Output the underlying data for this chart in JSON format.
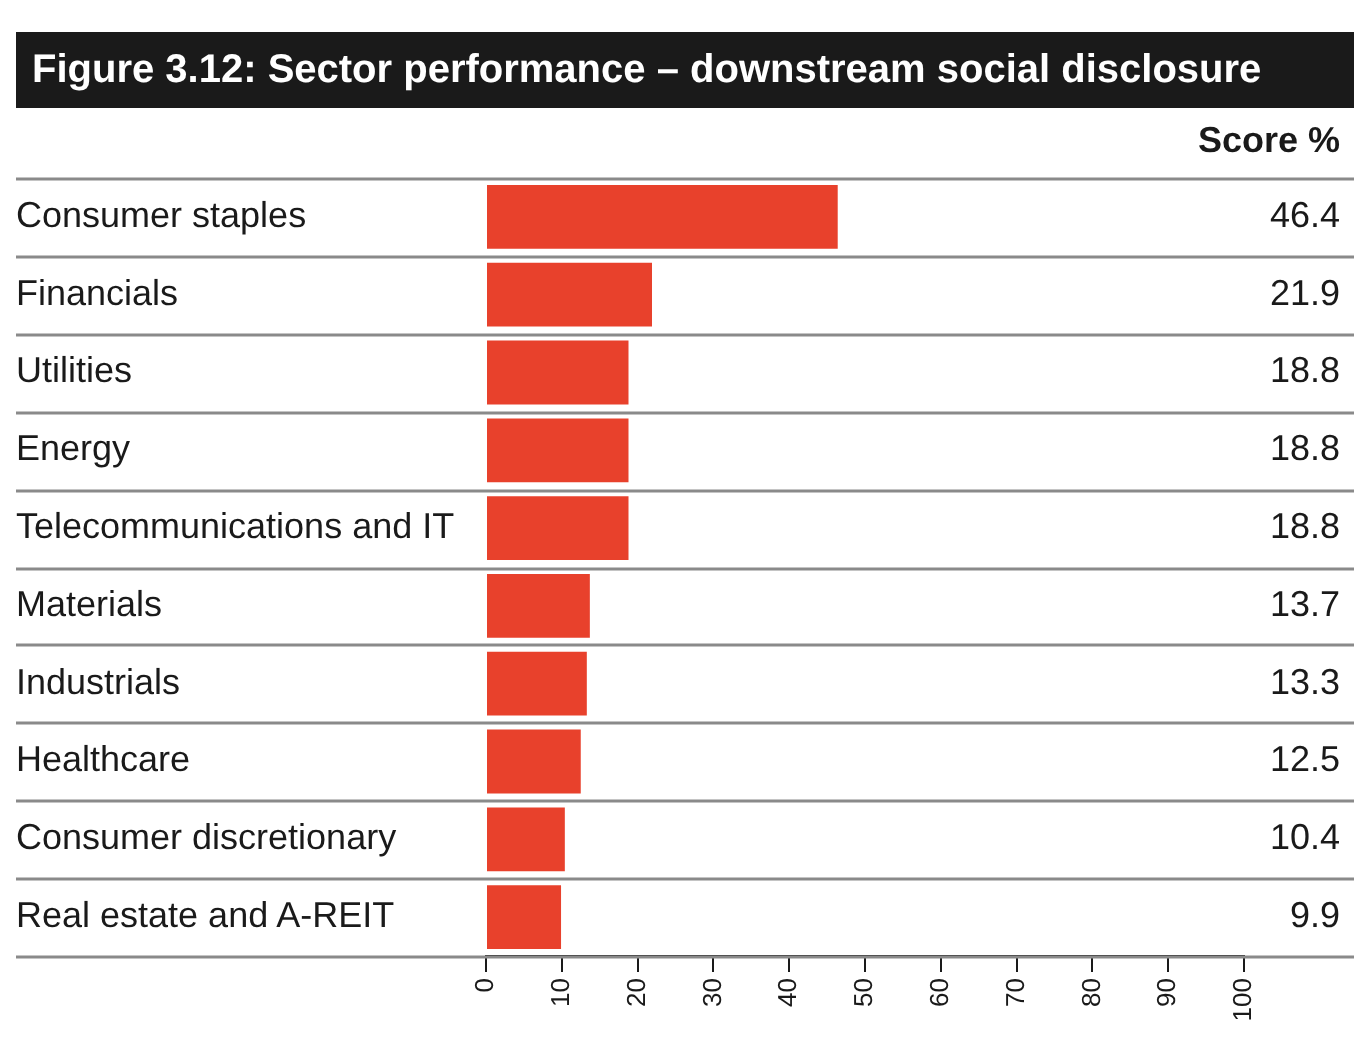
{
  "chart_data": {
    "type": "bar",
    "orientation": "horizontal",
    "title": "Figure 3.12: Sector performance – downstream social disclosure",
    "categories": [
      "Consumer staples",
      "Financials",
      "Utilities",
      "Energy",
      "Telecommunications and IT",
      "Materials",
      "Industrials",
      "Healthcare",
      "Consumer discretionary",
      "Real estate and A-REIT"
    ],
    "values": [
      46.4,
      21.9,
      18.8,
      18.8,
      18.8,
      13.7,
      13.3,
      12.5,
      10.4,
      9.9
    ],
    "color": "#e8412c",
    "xlim": [
      0,
      100
    ],
    "xticks": [
      0,
      10,
      20,
      30,
      40,
      50,
      60,
      70,
      80,
      90,
      100
    ],
    "grid": "y",
    "data_labels": true,
    "annotations": [
      "Score %"
    ]
  }
}
